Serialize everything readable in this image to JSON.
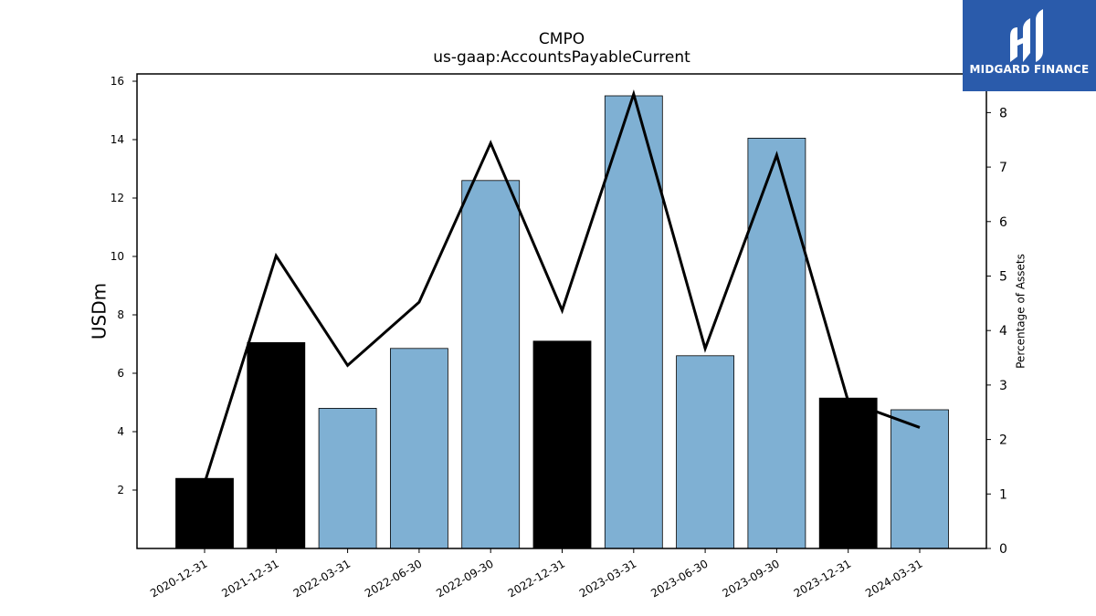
{
  "chart_data": {
    "type": "bar",
    "title": "CMPO",
    "subtitle": "us-gaap:AccountsPayableCurrent",
    "ylabel": "USDm",
    "y2label": "Percentage of Assets",
    "categories": [
      "2020-12-31",
      "2021-12-31",
      "2022-03-31",
      "2022-06-30",
      "2022-09-30",
      "2022-12-31",
      "2023-03-31",
      "2023-06-30",
      "2023-09-30",
      "2023-12-31",
      "2024-03-31"
    ],
    "bar_values": [
      2.4,
      7.05,
      4.8,
      6.85,
      12.6,
      7.1,
      15.5,
      6.6,
      14.05,
      5.15,
      4.75
    ],
    "bar_colors": [
      "#000000",
      "#000000",
      "#7fb0d3",
      "#7fb0d3",
      "#7fb0d3",
      "#000000",
      "#7fb0d3",
      "#7fb0d3",
      "#7fb0d3",
      "#000000",
      "#7fb0d3"
    ],
    "line_values": [
      1.2,
      5.37,
      3.36,
      4.52,
      7.44,
      4.37,
      8.34,
      3.67,
      7.22,
      2.7,
      2.22
    ],
    "ylim": [
      0,
      16.25
    ],
    "y2lim": [
      0,
      8.71
    ],
    "yticks": [
      2,
      4,
      6,
      8,
      10,
      12,
      14,
      16
    ],
    "y2ticks": [
      0,
      1,
      2,
      3,
      4,
      5,
      6,
      7,
      8
    ],
    "line_color": "#000000"
  },
  "logo": {
    "text": "MIDGARD FINANCE",
    "background": "#2a5bab"
  }
}
